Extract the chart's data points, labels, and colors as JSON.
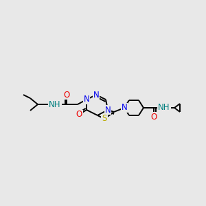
{
  "bg_color": "#e8e8e8",
  "bond_color": "#000000",
  "bond_lw": 1.4,
  "atom_colors": {
    "N": "#0000ee",
    "O": "#ee0000",
    "S": "#bbaa00",
    "NH": "#008080",
    "C": "#000000"
  },
  "font_size": 8.5,
  "fig_size": [
    3.0,
    3.0
  ],
  "dpi": 100
}
